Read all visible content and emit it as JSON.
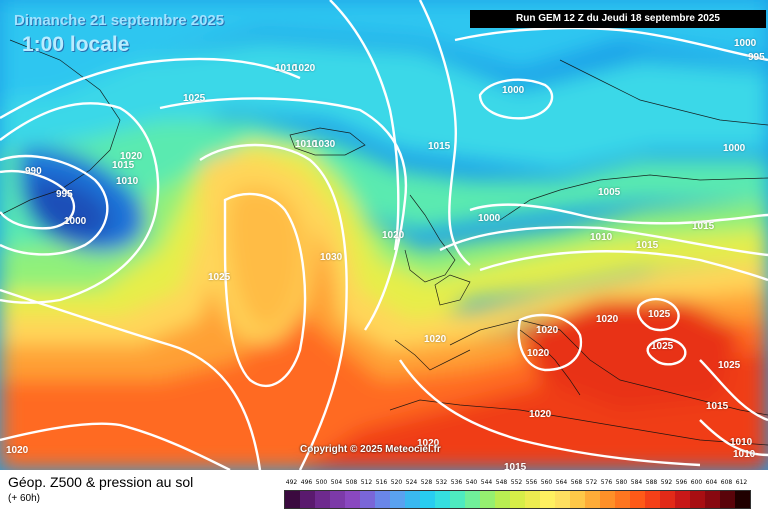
{
  "header": {
    "date": "Dimanche 21 septembre 2025",
    "time": "1:00 locale",
    "run": "Run GEM 12 Z du Jeudi 18 septembre 2025"
  },
  "footer": {
    "title": "Géop. Z500 & pression au sol",
    "subtitle": "(+ 60h)",
    "copyright": "Copyright © 2025 Meteociel.fr"
  },
  "legend": {
    "values": [
      "492",
      "496",
      "500",
      "504",
      "508",
      "512",
      "516",
      "520",
      "524",
      "528",
      "532",
      "536",
      "540",
      "544",
      "548",
      "552",
      "556",
      "560",
      "564",
      "568",
      "572",
      "576",
      "580",
      "584",
      "588",
      "592",
      "596",
      "600",
      "604",
      "608",
      "612"
    ],
    "colors": [
      "#3b0a3f",
      "#5a1a6e",
      "#6e2a8e",
      "#7c3aa8",
      "#8a48c0",
      "#7a66d8",
      "#6a86e8",
      "#5aa2f0",
      "#3ab8f0",
      "#28cdf0",
      "#35dfe0",
      "#4eebc0",
      "#70f09a",
      "#95f070",
      "#b8ee52",
      "#d6ee48",
      "#ecec50",
      "#fff060",
      "#ffe060",
      "#ffc848",
      "#ffac38",
      "#ff9028",
      "#ff7620",
      "#ff5a18",
      "#f44018",
      "#e22a18",
      "#c81818",
      "#a80e12",
      "#880810",
      "#5a040a",
      "#200000"
    ]
  },
  "isobars": [
    {
      "text": "1010",
      "id": "iso-1010"
    },
    {
      "text": "1020",
      "id": "iso-1020-top"
    },
    {
      "text": "1025",
      "id": "iso-1025-top"
    },
    {
      "text": "1000",
      "id": "iso-1000-ne"
    },
    {
      "text": "1000",
      "id": "iso-1000-top"
    },
    {
      "text": "995",
      "id": "iso-995-ne"
    },
    {
      "text": "1010",
      "id": "iso-1010-isl"
    },
    {
      "text": "1030",
      "id": "iso-1030-isl"
    },
    {
      "text": "1015",
      "id": "iso-1015-n"
    },
    {
      "text": "1000",
      "id": "iso-1000-e"
    },
    {
      "text": "1020",
      "id": "iso-1020-w1"
    },
    {
      "text": "1015",
      "id": "iso-1015-w"
    },
    {
      "text": "1010",
      "id": "iso-1010-w"
    },
    {
      "text": "990",
      "id": "iso-990"
    },
    {
      "text": "995",
      "id": "iso-995"
    },
    {
      "text": "1000",
      "id": "iso-1000-w"
    },
    {
      "text": "1025",
      "id": "iso-1025-atl"
    },
    {
      "text": "1030",
      "id": "iso-1030-atl"
    },
    {
      "text": "1020",
      "id": "iso-1020-uk"
    },
    {
      "text": "1000",
      "id": "iso-1000-scan"
    },
    {
      "text": "1005",
      "id": "iso-1005"
    },
    {
      "text": "1010",
      "id": "iso-1010-ger"
    },
    {
      "text": "1015",
      "id": "iso-1015-ger"
    },
    {
      "text": "1015",
      "id": "iso-1015-e"
    },
    {
      "text": "1020",
      "id": "iso-1020-alps"
    },
    {
      "text": "1020",
      "id": "iso-1020-bal"
    },
    {
      "text": "1025",
      "id": "iso-1025-bal"
    },
    {
      "text": "1025",
      "id": "iso-1025-bal2"
    },
    {
      "text": "1020",
      "id": "iso-1020-it"
    },
    {
      "text": "1020",
      "id": "iso-1020-fr"
    },
    {
      "text": "1020",
      "id": "iso-1020-med"
    },
    {
      "text": "1025",
      "id": "iso-1025-bs"
    },
    {
      "text": "1015",
      "id": "iso-1015-tr"
    },
    {
      "text": "1010",
      "id": "iso-1010-se"
    },
    {
      "text": "1010",
      "id": "iso-1010-se2"
    },
    {
      "text": "1020",
      "id": "iso-1020-sw"
    },
    {
      "text": "1020",
      "id": "iso-1020-af"
    },
    {
      "text": "1015",
      "id": "iso-1015-af"
    }
  ]
}
